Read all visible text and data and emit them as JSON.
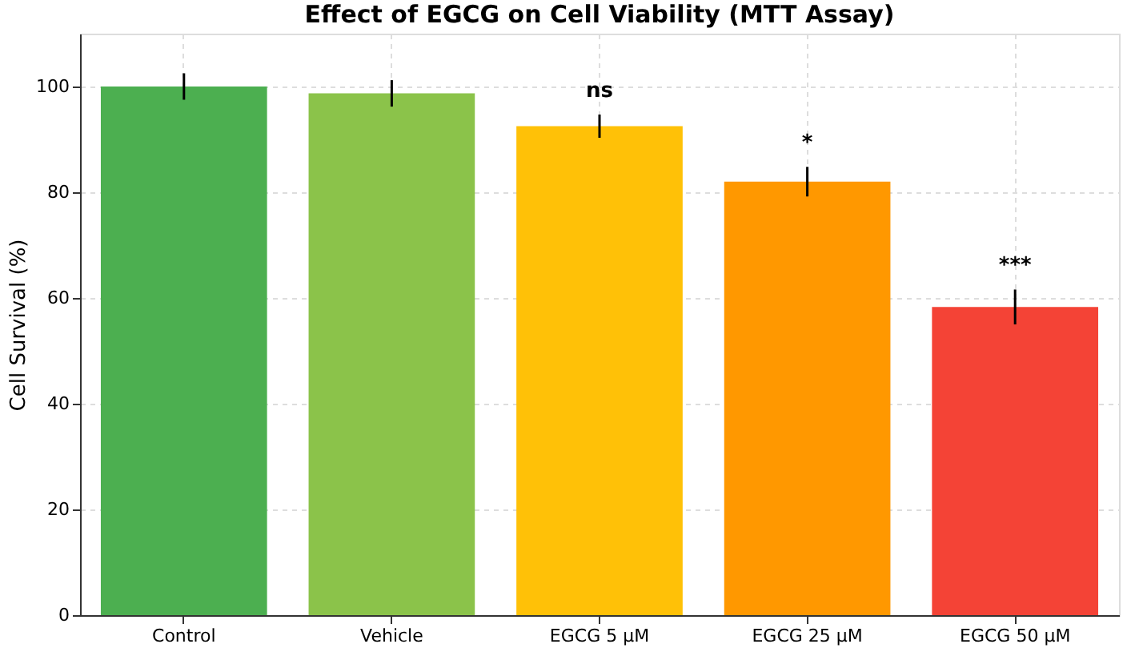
{
  "chart_data": {
    "type": "bar",
    "title": "Effect of EGCG on Cell Viability (MTT Assay)",
    "ylabel": "Cell Survival (%)",
    "categories": [
      "Control",
      "Vehicle",
      "EGCG 5 µM",
      "EGCG 25 µM",
      "EGCG 50 µM"
    ],
    "values": [
      100,
      98.7,
      92.5,
      82,
      58.3
    ],
    "errors": [
      2.5,
      2.5,
      2.2,
      2.8,
      3.3
    ],
    "colors": [
      "#4caf50",
      "#8bc34a",
      "#ffc107",
      "#ff9800",
      "#f44336"
    ],
    "ylim": [
      0,
      110
    ],
    "yticks": [
      0,
      20,
      40,
      60,
      80,
      100
    ],
    "grid": true,
    "annotations": [
      "ns",
      "*",
      "***"
    ]
  }
}
